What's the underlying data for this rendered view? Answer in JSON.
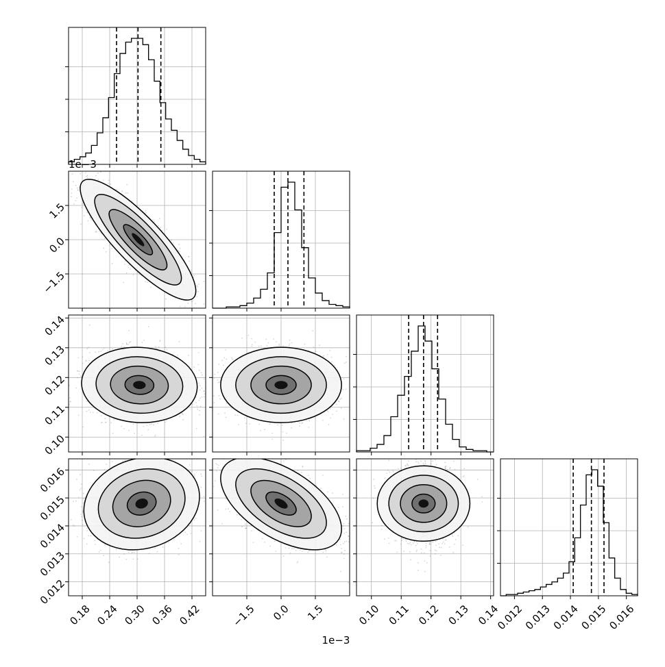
{
  "chart_data": {
    "type": "corner",
    "parameters": [
      {
        "range": [
          0.15,
          0.45
        ],
        "ticks": [
          0.18,
          0.24,
          0.3,
          0.36,
          0.42
        ],
        "tick_labels": [
          "0.18",
          "0.24",
          "0.30",
          "0.36",
          "0.42"
        ],
        "quantiles": [
          0.255,
          0.302,
          0.352
        ],
        "offset_text": ""
      },
      {
        "range": [
          -3.0,
          3.0
        ],
        "ticks": [
          -1.5,
          0.0,
          1.5
        ],
        "tick_labels": [
          "−1.5",
          "0.0",
          "1.5"
        ],
        "quantiles": [
          -0.3,
          0.3,
          1.0
        ],
        "offset_text": "1e−3"
      },
      {
        "range": [
          0.095,
          0.141
        ],
        "ticks": [
          0.1,
          0.11,
          0.12,
          0.13,
          0.14
        ],
        "tick_labels": [
          "0.10",
          "0.11",
          "0.12",
          "0.13",
          "0.14"
        ],
        "quantiles": [
          0.1125,
          0.1175,
          0.1222
        ],
        "offset_text": ""
      },
      {
        "range": [
          0.0115,
          0.0164
        ],
        "ticks": [
          0.012,
          0.013,
          0.014,
          0.015,
          0.016
        ],
        "tick_labels": [
          "0.012",
          "0.013",
          "0.014",
          "0.015",
          "0.016"
        ],
        "quantiles": [
          0.0141,
          0.01475,
          0.0152
        ],
        "offset_text": ""
      }
    ],
    "histograms": [
      {
        "heights": [
          0.02,
          0.04,
          0.06,
          0.09,
          0.15,
          0.25,
          0.37,
          0.53,
          0.72,
          0.88,
          0.97,
          1.0,
          1.0,
          0.95,
          0.83,
          0.66,
          0.49,
          0.36,
          0.27,
          0.19,
          0.12,
          0.07,
          0.04,
          0.02
        ]
      },
      {
        "heights": [
          0.0,
          0.0,
          0.01,
          0.01,
          0.02,
          0.04,
          0.08,
          0.15,
          0.28,
          0.6,
          0.96,
          1.0,
          0.78,
          0.48,
          0.24,
          0.12,
          0.06,
          0.03,
          0.02,
          0.01
        ]
      },
      {
        "heights": [
          0.01,
          0.01,
          0.03,
          0.06,
          0.13,
          0.28,
          0.45,
          0.6,
          0.8,
          1.0,
          0.88,
          0.66,
          0.42,
          0.22,
          0.1,
          0.04,
          0.02,
          0.01,
          0.01,
          0.0
        ]
      },
      {
        "heights": [
          0.0,
          0.01,
          0.01,
          0.02,
          0.03,
          0.04,
          0.05,
          0.07,
          0.09,
          0.11,
          0.14,
          0.18,
          0.27,
          0.46,
          0.72,
          0.96,
          1.0,
          0.87,
          0.58,
          0.3,
          0.14,
          0.05,
          0.02,
          0.01
        ]
      }
    ],
    "joint_distributions": [
      {
        "row": 1,
        "col": 0,
        "mean": [
          0.302,
          0.0003
        ],
        "sd": [
          0.055,
          1.15
        ],
        "rho": -0.85
      },
      {
        "row": 2,
        "col": 0,
        "mean": [
          0.305,
          0.1175
        ],
        "sd": [
          0.055,
          0.0055
        ],
        "rho": -0.05
      },
      {
        "row": 2,
        "col": 1,
        "mean": [
          0.0003,
          0.1175
        ],
        "sd": [
          1.15,
          0.0055
        ],
        "rho": 0.0
      },
      {
        "row": 3,
        "col": 0,
        "mean": [
          0.31,
          0.0148
        ],
        "sd": [
          0.055,
          0.00072
        ],
        "rho": 0.15
      },
      {
        "row": 3,
        "col": 1,
        "mean": [
          0.0003,
          0.0148
        ],
        "sd": [
          1.15,
          0.00072
        ],
        "rho": -0.55
      },
      {
        "row": 3,
        "col": 2,
        "mean": [
          0.1175,
          0.0148
        ],
        "sd": [
          0.0055,
          0.00072
        ],
        "rho": 0.0
      }
    ],
    "contour_levels_sigma": [
      0.5,
      1.0,
      1.5,
      2.0
    ],
    "grid": true,
    "title": "",
    "xlabel": "",
    "ylabel": ""
  }
}
